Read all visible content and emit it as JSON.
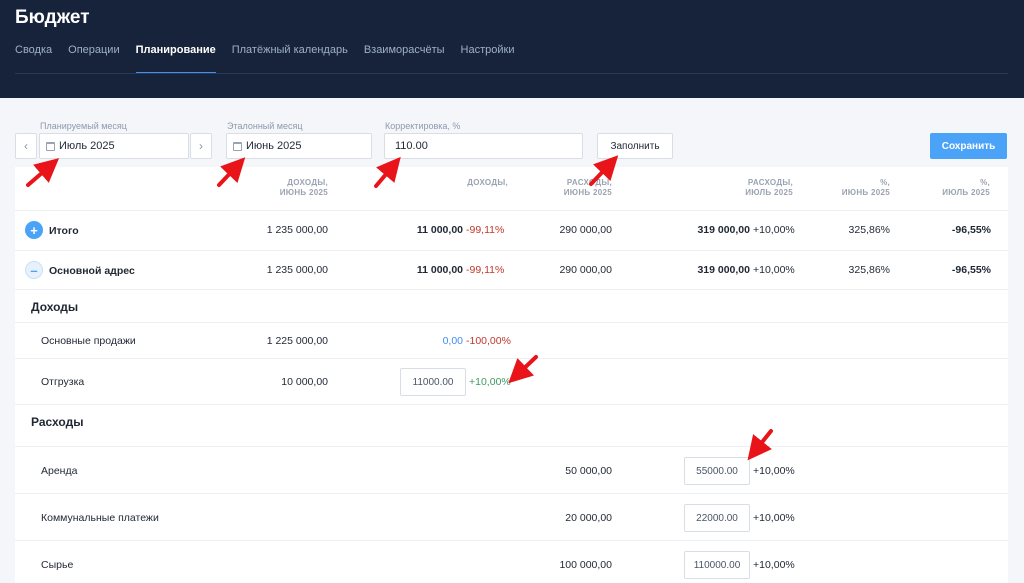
{
  "app": {
    "title": "Бюджет"
  },
  "tabs": [
    {
      "label": "Сводка"
    },
    {
      "label": "Операции"
    },
    {
      "label": "Планирование"
    },
    {
      "label": "Платёжный календарь"
    },
    {
      "label": "Взаиморасчёты"
    },
    {
      "label": "Настройки"
    }
  ],
  "active_tab": "Планирование",
  "toolbar": {
    "planned_month_label": "Планируемый месяц",
    "planned_month_value": "Июль 2025",
    "reference_month_label": "Эталонный месяц",
    "reference_month_value": "Июнь 2025",
    "correction_label": "Корректировка, %",
    "correction_value": "110.00",
    "fill_label": "Заполнить",
    "save_label": "Сохранить",
    "prev_icon": "chevron-left-icon",
    "next_icon": "chevron-right-icon"
  },
  "columns": {
    "income_ref_1": "ДОХОДЫ,",
    "income_ref_2": "ИЮНЬ 2025",
    "income_plan": "ДОХОДЫ,",
    "expense_ref_1": "РАСХОДЫ,",
    "expense_ref_2": "ИЮНЬ 2025",
    "expense_plan_1": "РАСХОДЫ,",
    "expense_plan_2": "ИЮЛЬ 2025",
    "pct_ref_1": "%,",
    "pct_ref_2": "ИЮНЬ 2025",
    "pct_plan_1": "%,",
    "pct_plan_2": "ИЮЛЬ 2025"
  },
  "rows": {
    "total": {
      "name": "Итого",
      "income_ref": "1 235 000,00",
      "income_plan": "11 000,00",
      "income_change": "-99,11%",
      "expense_ref": "290 000,00",
      "expense_plan": "319 000,00",
      "expense_change": "+10,00%",
      "pct_ref": "325,86%",
      "pct_plan": "-96,55%"
    },
    "main": {
      "name": "Основной адрес",
      "income_ref": "1 235 000,00",
      "income_plan": "11 000,00",
      "income_change": "-99,11%",
      "expense_ref": "290 000,00",
      "expense_plan": "319 000,00",
      "expense_change": "+10,00%",
      "pct_ref": "325,86%",
      "pct_plan": "-96,55%"
    },
    "income_section": "Доходы",
    "sales": {
      "name": "Основные продажи",
      "income_ref": "1 225 000,00",
      "income_plan": "0,00",
      "income_change": "-100,00%"
    },
    "shipment": {
      "name": "Отгрузка",
      "income_ref": "10 000,00",
      "input_value": "11000.00",
      "income_change": "+10,00%"
    },
    "expense_section": "Расходы",
    "rent": {
      "name": "Аренда",
      "expense_ref": "50 000,00",
      "input_value": "55000.00",
      "expense_change": "+10,00%"
    },
    "utilities": {
      "name": "Коммунальные платежи",
      "expense_ref": "20 000,00",
      "input_value": "22000.00",
      "expense_change": "+10,00%"
    },
    "raw": {
      "name": "Сырье",
      "expense_ref": "100 000,00",
      "input_value": "110000.00",
      "expense_change": "+10,00%"
    }
  },
  "colors": {
    "header_bg": "#16233a",
    "accent": "#4aa3f7",
    "negative": "#c0392b",
    "positive": "#3d9a62",
    "annotation": "#e8141a"
  }
}
